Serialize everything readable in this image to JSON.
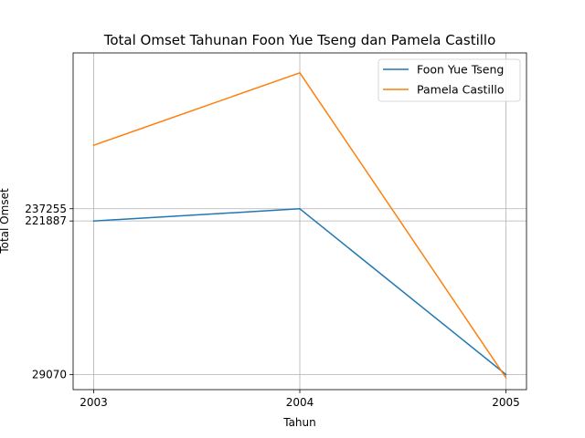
{
  "chart_data": {
    "type": "line",
    "title": "Total Omset Tahunan Foon Yue Tseng dan Pamela Castillo",
    "xlabel": "Tahun",
    "ylabel": "Total Omset",
    "categories": [
      "2003",
      "2004",
      "2005"
    ],
    "yticks": [
      29070,
      221887,
      237255
    ],
    "ytick_labels": [
      "29070",
      "221887",
      "237255"
    ],
    "ylim": [
      10000,
      433000
    ],
    "grid": true,
    "legend_position": "top-right",
    "series": [
      {
        "name": "Foon Yue Tseng",
        "color": "#1f77b4",
        "values": [
          221887,
          237255,
          29070
        ]
      },
      {
        "name": "Pamela Castillo",
        "color": "#ff7f0e",
        "values": [
          317000,
          408000,
          25000
        ]
      }
    ]
  }
}
